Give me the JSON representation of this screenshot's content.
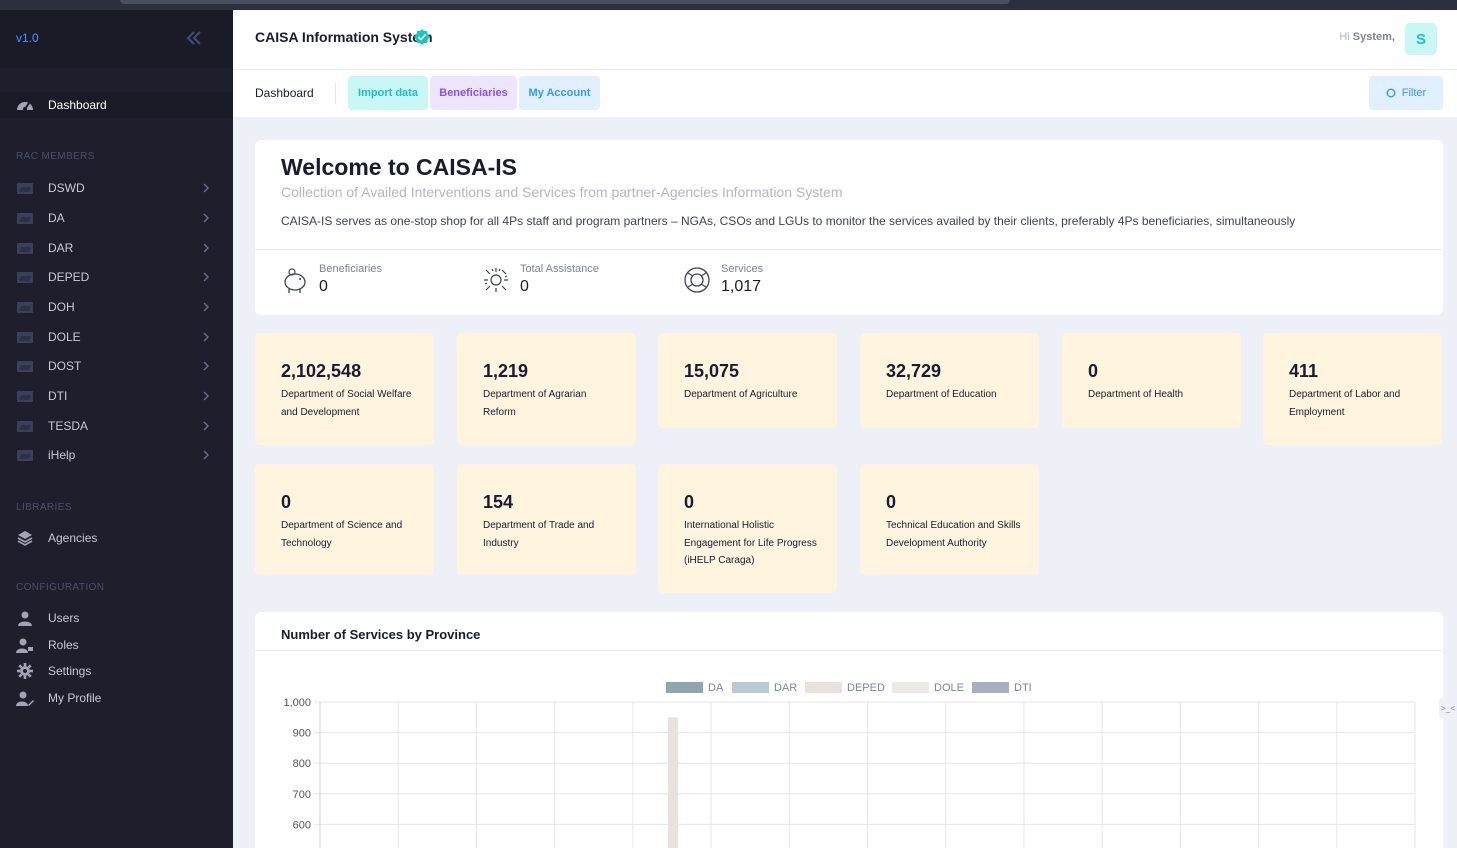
{
  "sidebar": {
    "version": "v1.0",
    "dashboard": "Dashboard",
    "section_rac": "RAC MEMBERS",
    "rac_items": [
      "DSWD",
      "DA",
      "DAR",
      "DEPED",
      "DOH",
      "DOLE",
      "DOST",
      "DTI",
      "TESDA",
      "iHelp"
    ],
    "section_libraries": "LIBRARIES",
    "agencies": "Agencies",
    "section_config": "CONFIGURATION",
    "config_items": [
      "Users",
      "Roles",
      "Settings",
      "My Profile"
    ]
  },
  "header": {
    "title": "CAISA Information System",
    "greeting": "Hi",
    "username": "System,",
    "avatar_letter": "S"
  },
  "subheader": {
    "breadcrumb": "Dashboard",
    "tabs": [
      "Import data",
      "Beneficiaries",
      "My Account"
    ],
    "filter": "Filter"
  },
  "welcome": {
    "title": "Welcome to CAISA-IS",
    "subtitle": "Collection of Availed Interventions and Services from partner-Agencies Information System",
    "description": "CAISA-IS serves as one-stop shop for all 4Ps staff and program partners – NGAs, CSOs and LGUs to monitor the services availed by their clients, preferably 4Ps beneficiaries, simultaneously",
    "stats": [
      {
        "label": "Beneficiaries",
        "value": "0",
        "icon": "piggy-bank-icon"
      },
      {
        "label": "Total Assistance",
        "value": "0",
        "icon": "confetti-icon"
      },
      {
        "label": "Services",
        "value": "1,017",
        "icon": "lifebuoy-icon"
      }
    ]
  },
  "agencies": [
    {
      "count": "2,102,548",
      "name": "Department of Social Welfare and Development"
    },
    {
      "count": "1,219",
      "name": "Department of Agrarian Reform"
    },
    {
      "count": "15,075",
      "name": "Department of Agriculture"
    },
    {
      "count": "32,729",
      "name": "Department of Education"
    },
    {
      "count": "0",
      "name": "Department of Health"
    },
    {
      "count": "411",
      "name": "Department of Labor and Employment"
    },
    {
      "count": "0",
      "name": "Department of Science and Technology"
    },
    {
      "count": "154",
      "name": "Department of Trade and Industry"
    },
    {
      "count": "0",
      "name": "International Holistic Engagement for Life Progress (iHELP Caraga)"
    },
    {
      "count": "0",
      "name": "Technical Education and Skills Development Authority"
    }
  ],
  "chart_data": {
    "type": "bar",
    "title": "Number of Services by Province",
    "legend_position": "top",
    "series": [
      {
        "name": "DA",
        "color": "#8fa6ad"
      },
      {
        "name": "DAR",
        "color": "#b9cbd2"
      },
      {
        "name": "DEPED",
        "color": "#e7e3dc"
      },
      {
        "name": "DOLE",
        "color": "#eceae4"
      },
      {
        "name": "DTI",
        "color": "#a9aec0"
      }
    ],
    "y_ticks": [
      "1,000",
      "900",
      "800",
      "700",
      "600"
    ],
    "ylim_visible": [
      550,
      1000
    ],
    "visible_bars": [
      {
        "series": "DEPED",
        "category_index": 4,
        "value": 950
      }
    ],
    "grid": true
  },
  "colors": {
    "sidebar_bg": "#1e1e2d",
    "accent": "#3699ff",
    "card_bg": "#fff4de",
    "tab_import_bg": "#c9f7f5",
    "tab_import_fg": "#1bc5bd",
    "tab_benef_bg": "#eee5ff",
    "tab_benef_fg": "#8950fc",
    "tab_account_bg": "#e1f0ff",
    "tab_account_fg": "#3699ff"
  }
}
